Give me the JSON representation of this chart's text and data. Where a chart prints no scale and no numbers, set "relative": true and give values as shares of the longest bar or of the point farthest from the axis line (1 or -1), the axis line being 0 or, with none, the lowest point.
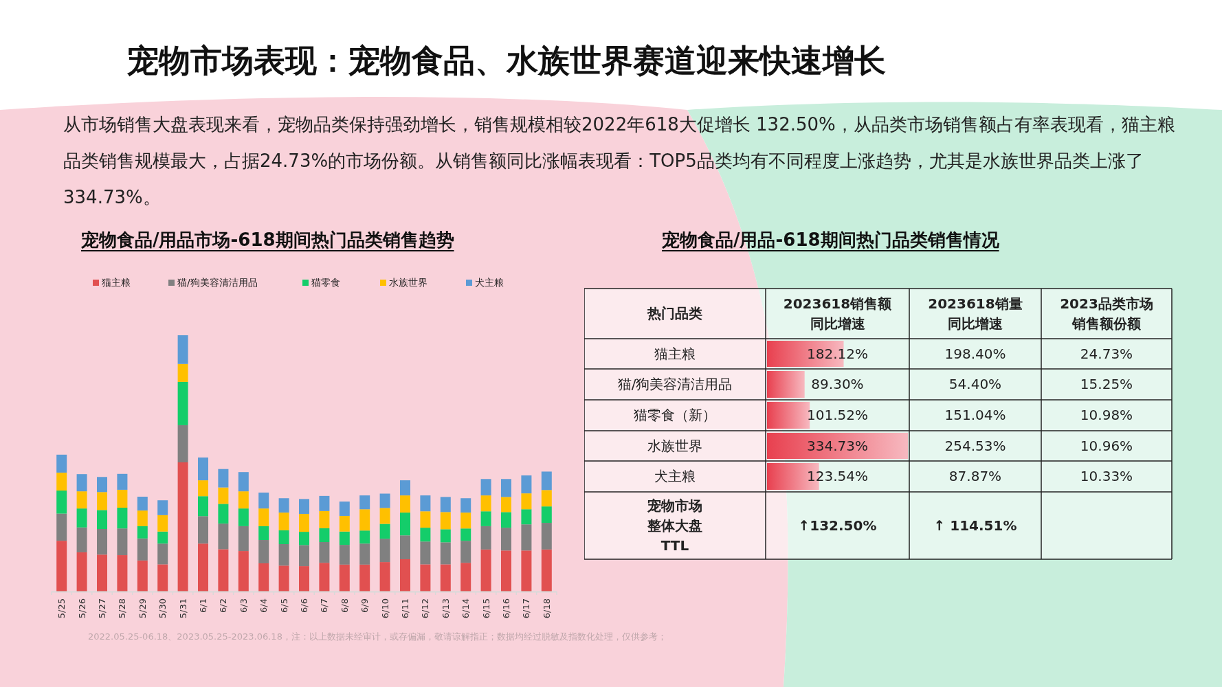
{
  "chart_data": [
    {
      "type": "other",
      "title": "宠物市场表现：宠物食品、水族世界赛道迎来快速增长",
      "annotations": [
        "从市场销售大盘表现来看，宠物品类保持强劲增长，销售规模相较2022年618大促增长 132.50%，从品类市场销售额占有率表现看，猫主粮品类销售规模最大，占据24.73%的市场份额。从销售额同比涨幅表现看：TOP5品类均有不同程度上涨趋势，尤其是水族世界品类上涨了334.73%。",
        "2022.05.25-06.18、2023.05.25-2023.06.18，注：以上数据未经审计，或存偏漏，敬请谅解指正；数据均经过脱敏及指数化处理，仅供参考；"
      ]
    },
    {
      "type": "bar",
      "title": "宠物食品/用品市场-618期间热门品类销售趋势",
      "stacked": true,
      "relative": true,
      "legend": "top",
      "categories": [
        "5/25",
        "5/26",
        "5/27",
        "5/28",
        "5/29",
        "5/30",
        "5/31",
        "6/1",
        "6/2",
        "6/3",
        "6/4",
        "6/5",
        "6/6",
        "6/7",
        "6/8",
        "6/9",
        "6/10",
        "6/11",
        "6/12",
        "6/13",
        "6/14",
        "6/15",
        "6/16",
        "6/17",
        "6/18"
      ],
      "series": [
        {
          "name": "猫主粮",
          "color": "#e15050",
          "values": [
            0.198,
            0.153,
            0.144,
            0.142,
            0.121,
            0.106,
            0.504,
            0.187,
            0.165,
            0.158,
            0.11,
            0.101,
            0.099,
            0.112,
            0.105,
            0.105,
            0.115,
            0.126,
            0.106,
            0.106,
            0.112,
            0.164,
            0.16,
            0.16,
            0.164
          ]
        },
        {
          "name": "猫/狗美容清洁用品",
          "color": "#808080",
          "values": [
            0.106,
            0.097,
            0.1,
            0.104,
            0.086,
            0.081,
            0.145,
            0.107,
            0.1,
            0.097,
            0.091,
            0.084,
            0.082,
            0.081,
            0.077,
            0.082,
            0.091,
            0.093,
            0.089,
            0.086,
            0.086,
            0.091,
            0.089,
            0.102,
            0.104
          ]
        },
        {
          "name": "猫零食",
          "color": "#14cd6a",
          "values": [
            0.09,
            0.074,
            0.074,
            0.081,
            0.048,
            0.047,
            0.169,
            0.078,
            0.077,
            0.069,
            0.054,
            0.054,
            0.052,
            0.054,
            0.052,
            0.051,
            0.058,
            0.089,
            0.054,
            0.051,
            0.048,
            0.058,
            0.061,
            0.059,
            0.064
          ]
        },
        {
          "name": "水族世界",
          "color": "#ffc000",
          "values": [
            0.07,
            0.067,
            0.07,
            0.07,
            0.061,
            0.064,
            0.07,
            0.062,
            0.064,
            0.067,
            0.069,
            0.069,
            0.07,
            0.067,
            0.061,
            0.083,
            0.062,
            0.067,
            0.064,
            0.067,
            0.062,
            0.062,
            0.059,
            0.062,
            0.064
          ]
        },
        {
          "name": "犬主粮",
          "color": "#5b9bd5",
          "values": [
            0.07,
            0.067,
            0.059,
            0.062,
            0.054,
            0.058,
            0.112,
            0.089,
            0.072,
            0.075,
            0.062,
            0.056,
            0.058,
            0.059,
            0.056,
            0.054,
            0.056,
            0.059,
            0.062,
            0.059,
            0.056,
            0.064,
            0.07,
            0.07,
            0.072
          ]
        }
      ]
    },
    {
      "type": "heatmap",
      "title": "宠物食品/用品-618期间热门品类销售情况",
      "ylabel": "热门品类",
      "categories": [
        "2023618销售额同比增速",
        "2023618销量同比增速",
        "2023品类市场销售额份额"
      ],
      "y_categories": [
        "猫主粮",
        "猫/狗美容清洁用品",
        "猫零食（新）",
        "水族世界",
        "犬主粮",
        "宠物市场整体大盘TTL"
      ],
      "cells": [
        [
          182.12,
          198.4,
          24.73
        ],
        [
          89.3,
          54.4,
          15.25
        ],
        [
          101.52,
          151.04,
          10.98
        ],
        [
          334.73,
          254.53,
          10.96
        ],
        [
          123.54,
          87.87,
          10.33
        ],
        [
          132.5,
          114.51,
          null
        ]
      ],
      "cell_labels": [
        [
          "182.12%",
          "198.40%",
          "24.73%"
        ],
        [
          "89.30%",
          "54.40%",
          "15.25%"
        ],
        [
          "101.52%",
          "151.04%",
          "10.98%"
        ],
        [
          "334.73%",
          "254.53%",
          "10.96%"
        ],
        [
          "123.54%",
          "87.87%",
          "10.33%"
        ],
        [
          "↑132.50%",
          "↑ 114.51%",
          null
        ]
      ]
    }
  ]
}
